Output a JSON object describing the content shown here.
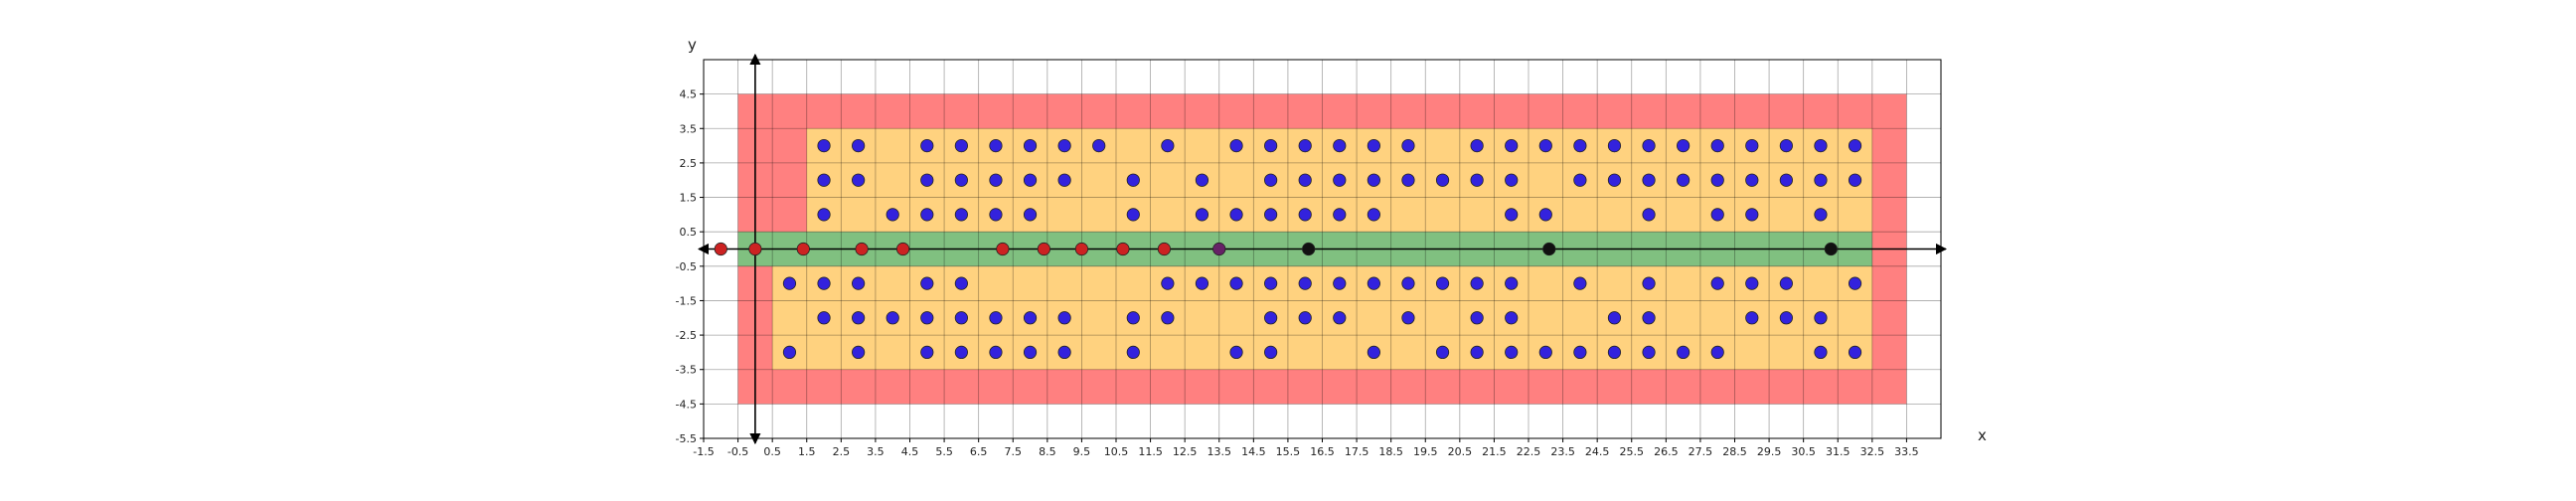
{
  "chart_data": {
    "type": "scatter",
    "xlabel": "x",
    "ylabel": "y",
    "xlim": [
      -1.5,
      34.5
    ],
    "ylim": [
      -5.5,
      5.5
    ],
    "x_ticks": [
      -1.5,
      -0.5,
      0.5,
      1.5,
      2.5,
      3.5,
      4.5,
      5.5,
      6.5,
      7.5,
      8.5,
      9.5,
      10.5,
      11.5,
      12.5,
      13.5,
      14.5,
      15.5,
      16.5,
      17.5,
      18.5,
      19.5,
      20.5,
      21.5,
      22.5,
      23.5,
      24.5,
      25.5,
      26.5,
      27.5,
      28.5,
      29.5,
      30.5,
      31.5,
      32.5,
      33.5
    ],
    "x_tick_labels": [
      "-1.5",
      "-0.5",
      "0.5",
      "1.5",
      "2.5",
      "3.5",
      "4.5",
      "5.5",
      "6.5",
      "7.5",
      "8.5",
      "9.5",
      "10.5",
      "11.5",
      "12.5",
      "13.5",
      "14.5",
      "15.5",
      "16.5",
      "17.5",
      "18.5",
      "19.5",
      "20.5",
      "21.5",
      "22.5",
      "23.5",
      "24.5",
      "25.5",
      "26.5",
      "27.5",
      "28.5",
      "29.5",
      "30.5",
      "31.5",
      "32.5",
      "33.5"
    ],
    "y_ticks": [
      4.5,
      3.5,
      2.5,
      1.5,
      0.5,
      -0.5,
      -1.5,
      -2.5,
      -3.5,
      -4.5,
      -5.5
    ],
    "y_tick_labels": [
      "4.5",
      "3.5",
      "2.5",
      "1.5",
      "0.5",
      "-0.5",
      "-1.5",
      "-2.5",
      "-3.5",
      "-4.5",
      "-5.5"
    ],
    "grid": true,
    "regions": [
      {
        "name": "outer",
        "color": "#ff8080",
        "x": [
          -0.5,
          33.5
        ],
        "y": [
          -4.5,
          4.5
        ]
      },
      {
        "name": "inner-top",
        "color": "#ffd27f",
        "x": [
          1.5,
          32.5
        ],
        "y": [
          0.5,
          3.5
        ]
      },
      {
        "name": "inner-bottom",
        "color": "#ffd27f",
        "x": [
          0.5,
          32.5
        ],
        "y": [
          -3.5,
          -0.5
        ]
      },
      {
        "name": "band",
        "color": "#80c080",
        "x": [
          -0.5,
          32.5
        ],
        "y": [
          -0.5,
          0.5
        ]
      }
    ],
    "series": [
      {
        "color": "#3322dd",
        "points": [
          [
            2,
            3
          ],
          [
            3,
            3
          ],
          [
            5,
            3
          ],
          [
            6,
            3
          ],
          [
            7,
            3
          ],
          [
            8,
            3
          ],
          [
            9,
            3
          ],
          [
            10,
            3
          ],
          [
            12,
            3
          ],
          [
            14,
            3
          ],
          [
            15,
            3
          ],
          [
            16,
            3
          ],
          [
            17,
            3
          ],
          [
            18,
            3
          ],
          [
            19,
            3
          ],
          [
            21,
            3
          ],
          [
            22,
            3
          ],
          [
            23,
            3
          ],
          [
            24,
            3
          ],
          [
            25,
            3
          ],
          [
            26,
            3
          ],
          [
            27,
            3
          ],
          [
            28,
            3
          ],
          [
            29,
            3
          ],
          [
            30,
            3
          ],
          [
            31,
            3
          ],
          [
            32,
            3
          ],
          [
            2,
            2
          ],
          [
            3,
            2
          ],
          [
            5,
            2
          ],
          [
            6,
            2
          ],
          [
            7,
            2
          ],
          [
            8,
            2
          ],
          [
            9,
            2
          ],
          [
            11,
            2
          ],
          [
            13,
            2
          ],
          [
            15,
            2
          ],
          [
            16,
            2
          ],
          [
            17,
            2
          ],
          [
            18,
            2
          ],
          [
            19,
            2
          ],
          [
            20,
            2
          ],
          [
            21,
            2
          ],
          [
            22,
            2
          ],
          [
            24,
            2
          ],
          [
            25,
            2
          ],
          [
            26,
            2
          ],
          [
            27,
            2
          ],
          [
            28,
            2
          ],
          [
            29,
            2
          ],
          [
            30,
            2
          ],
          [
            31,
            2
          ],
          [
            32,
            2
          ],
          [
            2,
            1
          ],
          [
            4,
            1
          ],
          [
            5,
            1
          ],
          [
            6,
            1
          ],
          [
            7,
            1
          ],
          [
            8,
            1
          ],
          [
            11,
            1
          ],
          [
            13,
            1
          ],
          [
            14,
            1
          ],
          [
            15,
            1
          ],
          [
            16,
            1
          ],
          [
            17,
            1
          ],
          [
            18,
            1
          ],
          [
            22,
            1
          ],
          [
            23,
            1
          ],
          [
            26,
            1
          ],
          [
            28,
            1
          ],
          [
            29,
            1
          ],
          [
            31,
            1
          ],
          [
            1,
            -1
          ],
          [
            2,
            -1
          ],
          [
            3,
            -1
          ],
          [
            5,
            -1
          ],
          [
            6,
            -1
          ],
          [
            12,
            -1
          ],
          [
            13,
            -1
          ],
          [
            14,
            -1
          ],
          [
            15,
            -1
          ],
          [
            16,
            -1
          ],
          [
            17,
            -1
          ],
          [
            18,
            -1
          ],
          [
            19,
            -1
          ],
          [
            20,
            -1
          ],
          [
            21,
            -1
          ],
          [
            22,
            -1
          ],
          [
            24,
            -1
          ],
          [
            26,
            -1
          ],
          [
            28,
            -1
          ],
          [
            29,
            -1
          ],
          [
            30,
            -1
          ],
          [
            32,
            -1
          ],
          [
            2,
            -2
          ],
          [
            3,
            -2
          ],
          [
            4,
            -2
          ],
          [
            5,
            -2
          ],
          [
            6,
            -2
          ],
          [
            7,
            -2
          ],
          [
            8,
            -2
          ],
          [
            9,
            -2
          ],
          [
            11,
            -2
          ],
          [
            12,
            -2
          ],
          [
            15,
            -2
          ],
          [
            16,
            -2
          ],
          [
            17,
            -2
          ],
          [
            19,
            -2
          ],
          [
            21,
            -2
          ],
          [
            22,
            -2
          ],
          [
            25,
            -2
          ],
          [
            26,
            -2
          ],
          [
            29,
            -2
          ],
          [
            30,
            -2
          ],
          [
            31,
            -2
          ],
          [
            1,
            -3
          ],
          [
            3,
            -3
          ],
          [
            5,
            -3
          ],
          [
            6,
            -3
          ],
          [
            7,
            -3
          ],
          [
            8,
            -3
          ],
          [
            9,
            -3
          ],
          [
            11,
            -3
          ],
          [
            14,
            -3
          ],
          [
            15,
            -3
          ],
          [
            18,
            -3
          ],
          [
            20,
            -3
          ],
          [
            21,
            -3
          ],
          [
            22,
            -3
          ],
          [
            23,
            -3
          ],
          [
            24,
            -3
          ],
          [
            25,
            -3
          ],
          [
            26,
            -3
          ],
          [
            27,
            -3
          ],
          [
            28,
            -3
          ],
          [
            31,
            -3
          ],
          [
            32,
            -3
          ]
        ]
      },
      {
        "color": "#cc2222",
        "points": [
          [
            -1,
            0
          ],
          [
            0,
            0
          ],
          [
            1.4,
            0
          ],
          [
            3.1,
            0
          ],
          [
            4.3,
            0
          ],
          [
            7.2,
            0
          ],
          [
            8.4,
            0
          ],
          [
            9.5,
            0
          ],
          [
            10.7,
            0
          ],
          [
            11.9,
            0
          ]
        ]
      },
      {
        "color": "#662266",
        "points": [
          [
            13.5,
            0
          ]
        ]
      },
      {
        "color": "#111111",
        "points": [
          [
            16.1,
            0
          ],
          [
            23.1,
            0
          ],
          [
            31.3,
            0
          ]
        ]
      }
    ]
  }
}
